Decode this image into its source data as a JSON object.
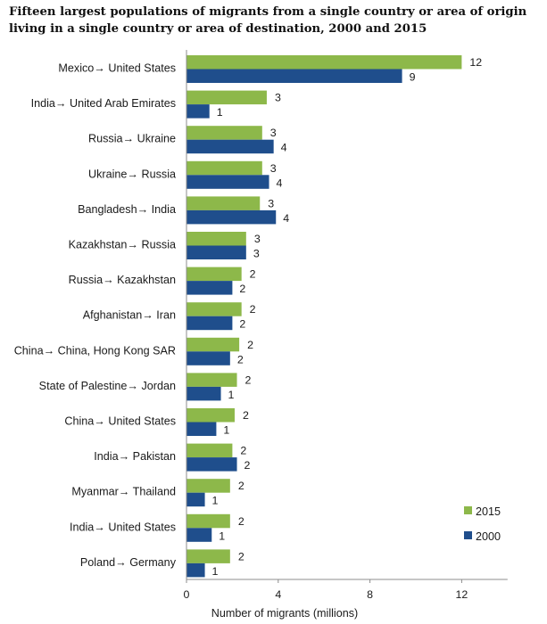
{
  "chart_data": {
    "type": "bar",
    "orientation": "horizontal",
    "title": "Fifteen largest populations of migrants from a single country or area of origin living in a single country or area of destination, 2000 and 2015",
    "xlabel": "Number of migrants (millions)",
    "ylabel": "",
    "xlim": [
      0,
      14
    ],
    "xticks": [
      0,
      4,
      8,
      12
    ],
    "grid": false,
    "legend_position": "bottom-right",
    "categories": [
      "Mexico→ United States",
      "India→ United Arab Emirates",
      "Russia→ Ukraine",
      "Ukraine→ Russia",
      "Bangladesh→ India",
      "Kazakhstan→ Russia",
      "Russia→ Kazakhstan",
      "Afghanistan→ Iran",
      "China→ China, Hong Kong SAR",
      "State of Palestine→ Jordan",
      "China→ United States",
      "India→ Pakistan",
      "Myanmar→ Thailand",
      "India→ United States",
      "Poland→ Germany"
    ],
    "series": [
      {
        "name": "2015",
        "color": "#8db84a",
        "values": [
          12.0,
          3.5,
          3.3,
          3.3,
          3.2,
          2.6,
          2.4,
          2.4,
          2.3,
          2.2,
          2.1,
          2.0,
          1.9,
          1.9,
          1.9
        ],
        "labels": [
          "12",
          "3",
          "3",
          "3",
          "3",
          "3",
          "2",
          "2",
          "2",
          "2",
          "2",
          "2",
          "2",
          "2",
          "2"
        ]
      },
      {
        "name": "2000",
        "color": "#1f4e8c",
        "values": [
          9.4,
          1.0,
          3.8,
          3.6,
          3.9,
          2.6,
          2.0,
          2.0,
          1.9,
          1.5,
          1.3,
          2.2,
          0.8,
          1.1,
          0.8
        ],
        "labels": [
          "9",
          "1",
          "4",
          "4",
          "4",
          "3",
          "2",
          "2",
          "2",
          "1",
          "1",
          "2",
          "1",
          "1",
          "1"
        ]
      }
    ]
  }
}
